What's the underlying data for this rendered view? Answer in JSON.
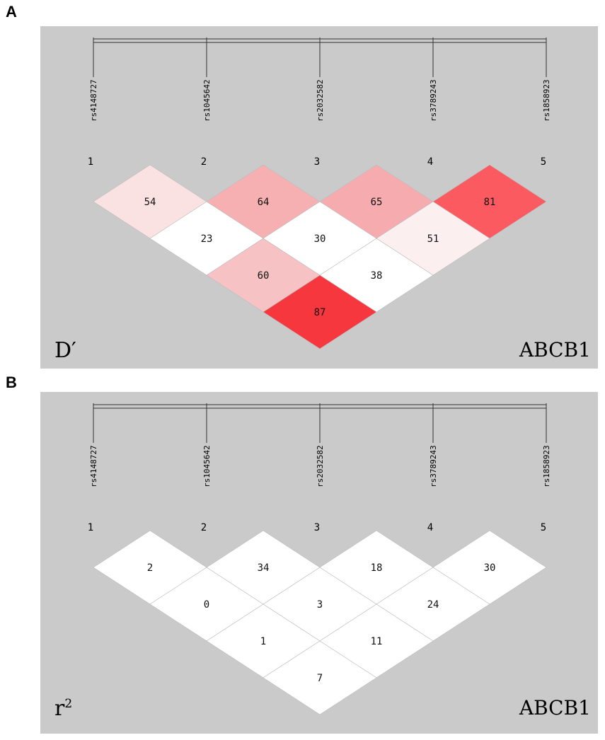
{
  "panels": [
    {
      "letter": "A",
      "stat_label": "D′",
      "gene": "ABCB1"
    },
    {
      "letter": "B",
      "stat_label": "r",
      "stat_sup": "2",
      "gene": "ABCB1"
    }
  ],
  "chart_data": [
    {
      "type": "heatmap",
      "measure": "D′",
      "gene": "ABCB1",
      "snps": [
        "rs4148727",
        "rs1045642",
        "rs2032582",
        "rs3789243",
        "rs1858923"
      ],
      "snp_numbers": [
        "1",
        "2",
        "3",
        "4",
        "5"
      ],
      "pairs": [
        {
          "i": 1,
          "j": 2,
          "value": 54,
          "color": "#fbe2e2"
        },
        {
          "i": 2,
          "j": 3,
          "value": 64,
          "color": "#f6b0b2"
        },
        {
          "i": 3,
          "j": 4,
          "value": 65,
          "color": "#f6acae"
        },
        {
          "i": 4,
          "j": 5,
          "value": 81,
          "color": "#fa5a60"
        },
        {
          "i": 1,
          "j": 3,
          "value": 23,
          "color": "#ffffff"
        },
        {
          "i": 2,
          "j": 4,
          "value": 30,
          "color": "#ffffff"
        },
        {
          "i": 3,
          "j": 5,
          "value": 51,
          "color": "#fcefef"
        },
        {
          "i": 1,
          "j": 4,
          "value": 60,
          "color": "#f7c2c4"
        },
        {
          "i": 2,
          "j": 5,
          "value": 38,
          "color": "#ffffff"
        },
        {
          "i": 1,
          "j": 5,
          "value": 87,
          "color": "#f6373e"
        }
      ]
    },
    {
      "type": "heatmap",
      "measure": "r2",
      "gene": "ABCB1",
      "snps": [
        "rs4148727",
        "rs1045642",
        "rs2032582",
        "rs3789243",
        "rs1858923"
      ],
      "snp_numbers": [
        "1",
        "2",
        "3",
        "4",
        "5"
      ],
      "pairs": [
        {
          "i": 1,
          "j": 2,
          "value": 2,
          "color": "#ffffff"
        },
        {
          "i": 2,
          "j": 3,
          "value": 34,
          "color": "#ffffff"
        },
        {
          "i": 3,
          "j": 4,
          "value": 18,
          "color": "#ffffff"
        },
        {
          "i": 4,
          "j": 5,
          "value": 30,
          "color": "#ffffff"
        },
        {
          "i": 1,
          "j": 3,
          "value": 0,
          "color": "#ffffff"
        },
        {
          "i": 2,
          "j": 4,
          "value": 3,
          "color": "#ffffff"
        },
        {
          "i": 3,
          "j": 5,
          "value": 24,
          "color": "#ffffff"
        },
        {
          "i": 1,
          "j": 4,
          "value": 1,
          "color": "#ffffff"
        },
        {
          "i": 2,
          "j": 5,
          "value": 11,
          "color": "#ffffff"
        },
        {
          "i": 1,
          "j": 5,
          "value": 7,
          "color": "#ffffff"
        }
      ]
    }
  ]
}
